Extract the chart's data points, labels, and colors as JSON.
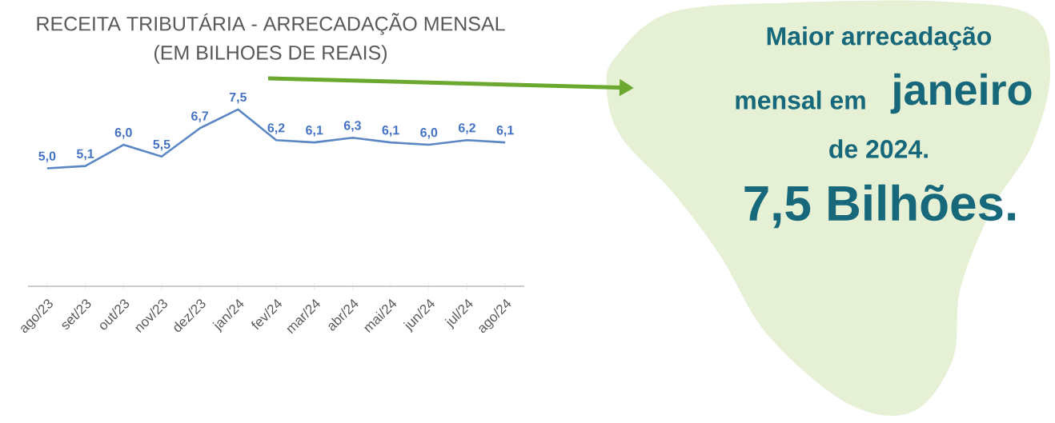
{
  "chart_data": {
    "type": "line",
    "title": "RECEITA TRIBUTÁRIA - ARRECADAÇÃO MENSAL",
    "subtitle": "(EM BILHOES DE REAIS)",
    "categories": [
      "ago/23",
      "set/23",
      "out/23",
      "nov/23",
      "dez/23",
      "jan/24",
      "fev/24",
      "mar/24",
      "abr/24",
      "mai/24",
      "jun/24",
      "jul/24",
      "ago/24"
    ],
    "values": [
      5.0,
      5.1,
      6.0,
      5.5,
      6.7,
      7.5,
      6.2,
      6.1,
      6.3,
      6.1,
      6.0,
      6.2,
      6.1
    ],
    "value_labels": [
      "5,0",
      "5,1",
      "6,0",
      "5,5",
      "6,7",
      "7,5",
      "6,2",
      "6,1",
      "6,3",
      "6,1",
      "6,0",
      "6,2",
      "6,1"
    ],
    "color": "#5b87c5",
    "marker": "none",
    "tick_labels": "x",
    "line_style": "solid",
    "annotations": [
      "Maior arrecadação",
      "mensal em",
      "janeiro",
      "de 2024.",
      "7,5 Bilhões."
    ]
  }
}
